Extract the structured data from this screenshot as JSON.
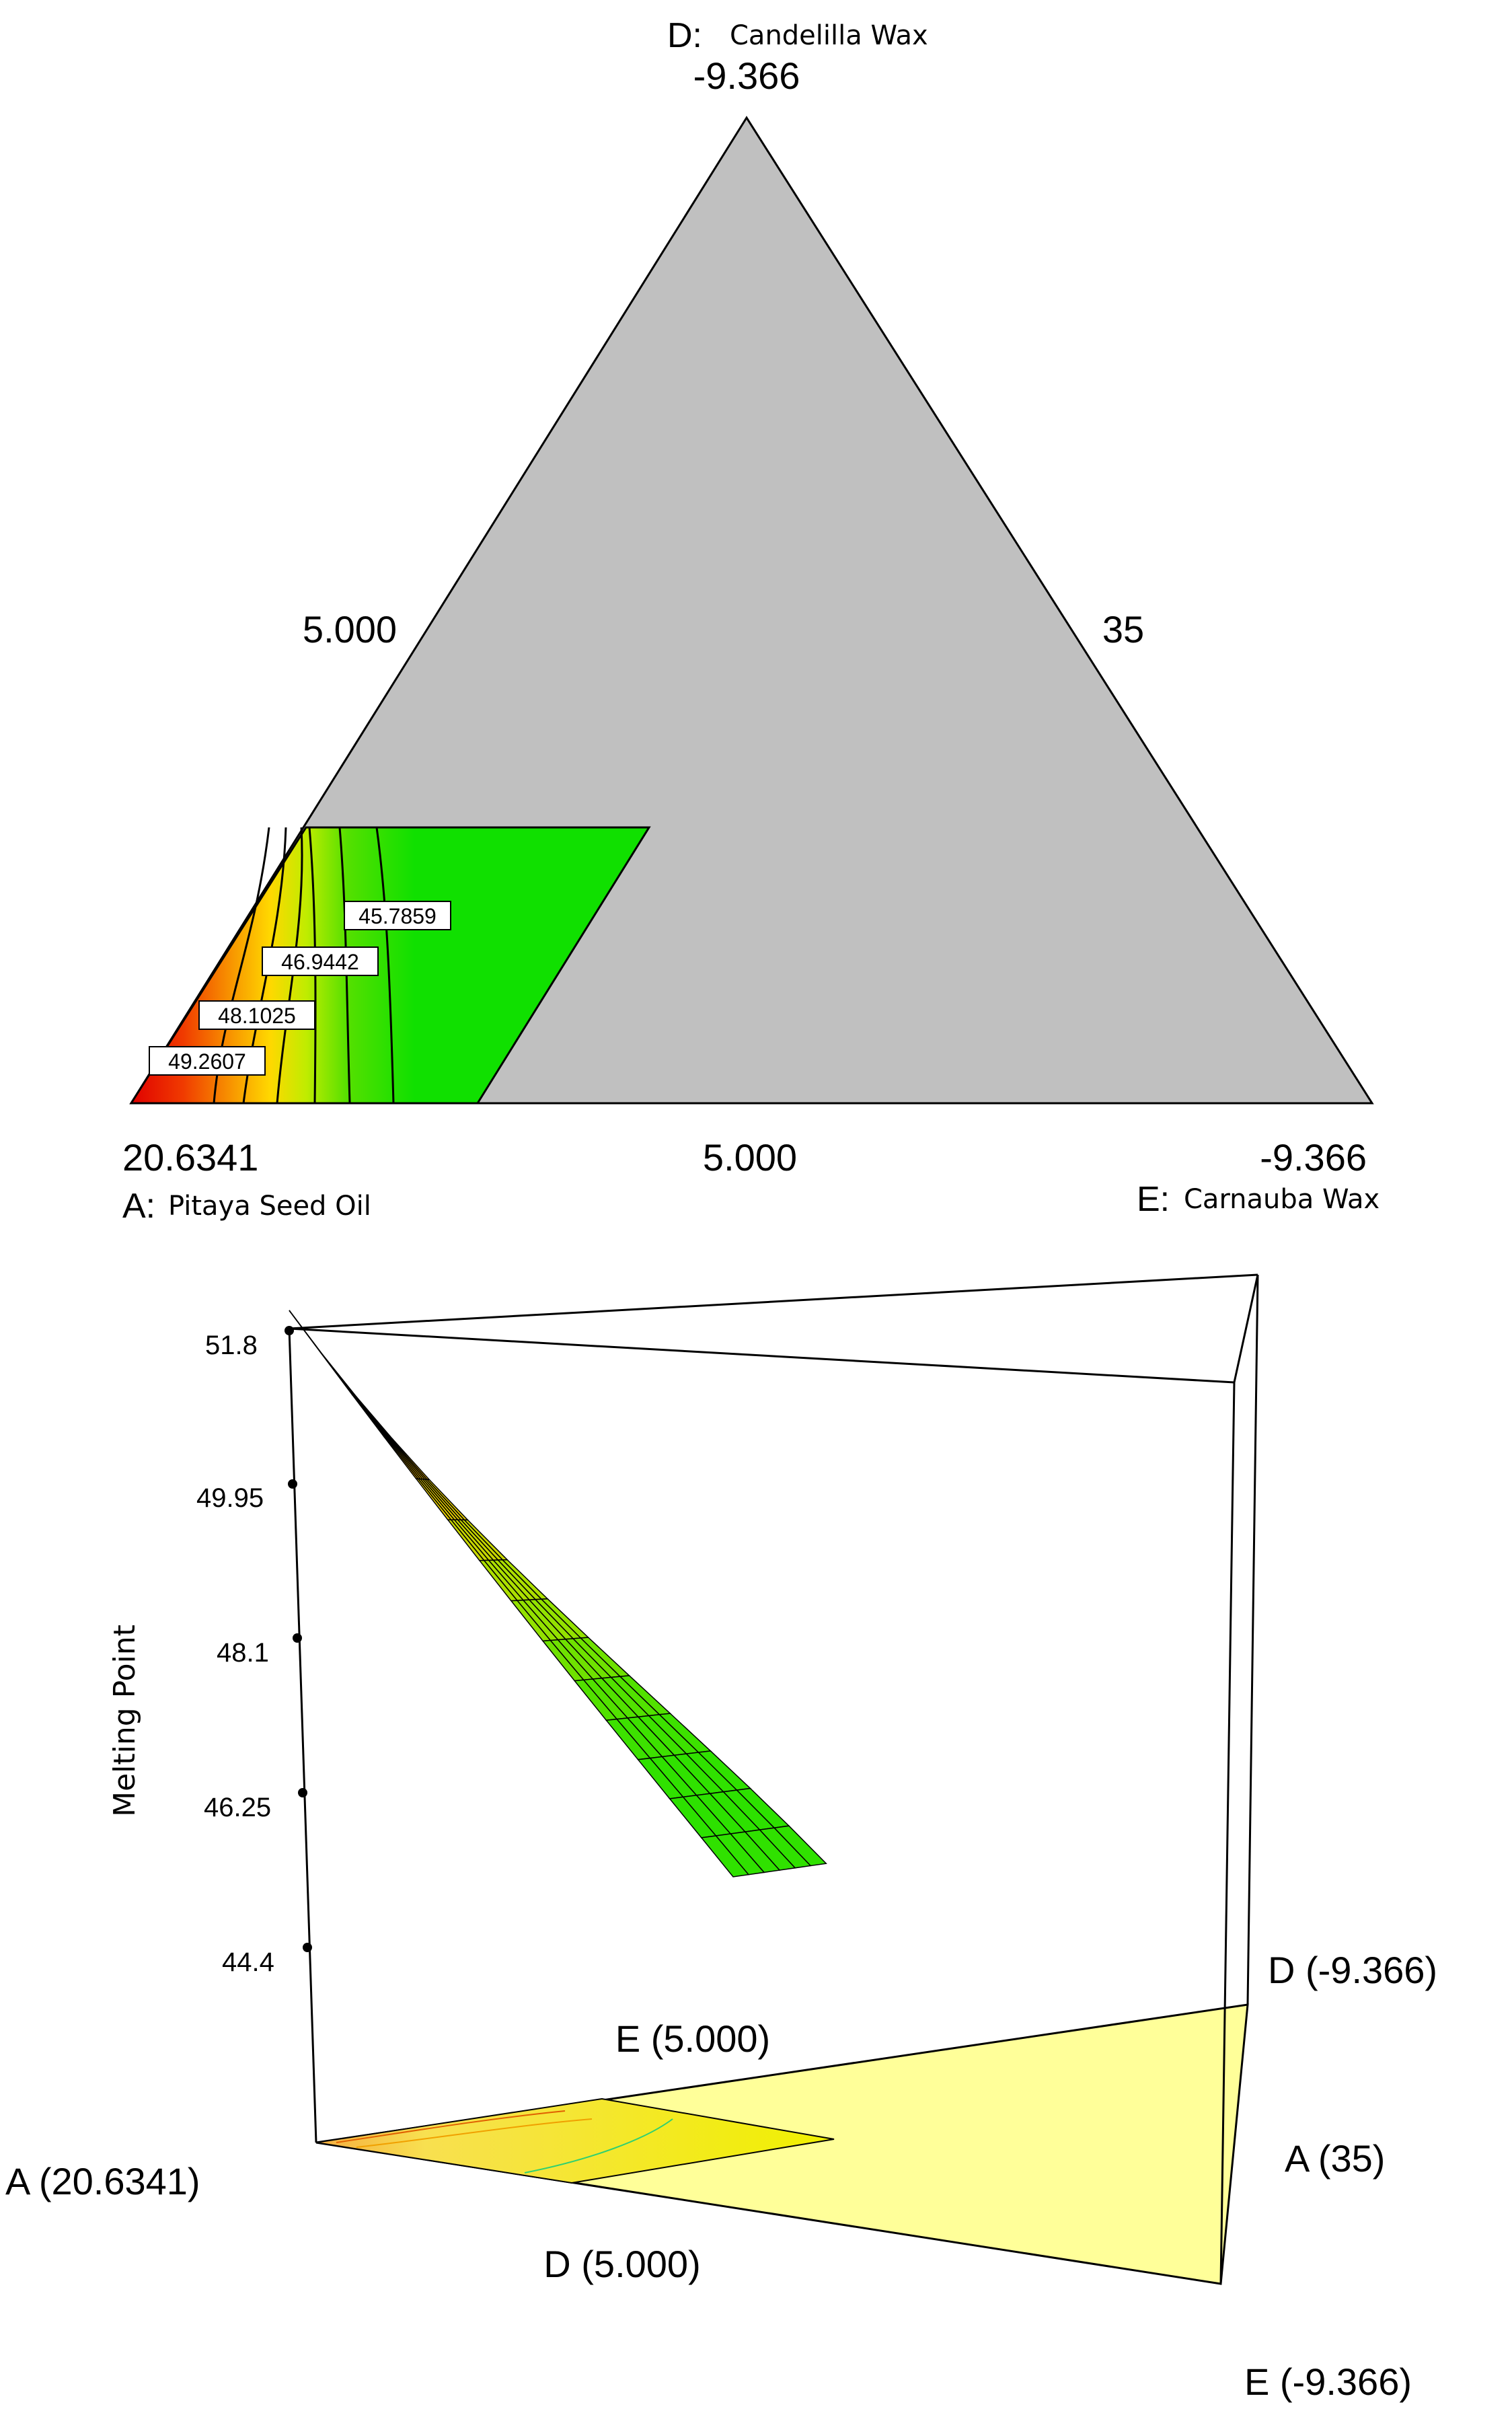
{
  "chart_data": [
    {
      "type": "ternary-contour",
      "vertices": {
        "top": {
          "letter": "D:",
          "name": "Candelilla Wax",
          "value": "-9.366"
        },
        "left": {
          "letter": "A:",
          "name": "Pitaya Seed Oil",
          "value": "20.6341"
        },
        "right": {
          "letter": "E:",
          "name": "Carnauba Wax",
          "value": "-9.366"
        }
      },
      "edge_labels": {
        "left": "5.000",
        "right": "35",
        "bottom": "5.000"
      },
      "contours": [
        {
          "label": "49.2607",
          "color": "#e82a00"
        },
        {
          "label": "48.1025",
          "color": "#f5a800"
        },
        {
          "label": "46.9442",
          "color": "#a8ea00"
        },
        {
          "label": "45.7859",
          "color": "#22e000"
        }
      ],
      "colors": {
        "background": "#c0c0c0",
        "high": "#e00000",
        "mid": "#ffd800",
        "low": "#10e000"
      }
    },
    {
      "type": "surface-3d",
      "zlabel": "Melting Point",
      "z_ticks": [
        "51.8",
        "49.95",
        "48.1",
        "46.25",
        "44.4"
      ],
      "zlim": [
        44.4,
        51.8
      ],
      "base_labels": {
        "a_left": "A (20.6341)",
        "e_mid": "E (5.000)",
        "d_mid": "D (5.000)",
        "d_right": "D (-9.366)",
        "a_right": "A (35)",
        "e_right": "E (-9.366)"
      },
      "surface_profile": [
        51.8,
        51.0,
        50.1,
        49.3,
        48.5,
        47.8,
        47.1,
        46.5,
        45.9,
        45.4,
        45.0,
        44.75,
        44.6,
        44.65,
        44.7
      ],
      "colors": {
        "surface_high": "#e00000",
        "surface_low": "#10e000",
        "base": "#ffff99"
      }
    }
  ]
}
